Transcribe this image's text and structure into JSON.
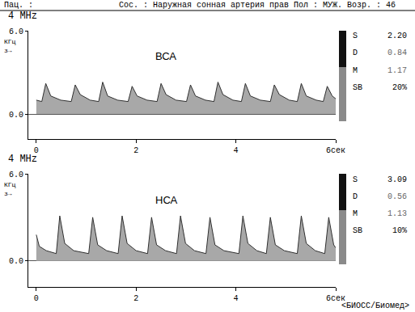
{
  "header": {
    "patient": "Пац. :",
    "info": "Сос. : Наружная сонная артерия прав Пол : МУЖ. Возр. : 46"
  },
  "footer": "<БИОСС/Биомед>",
  "chart_data": [
    {
      "type": "area",
      "title": "ВСА",
      "frequency_label": "4 MHz",
      "y_label": "КГц",
      "y_arrow": "з→",
      "color": "#a8a8a8",
      "x": [
        0.0,
        0.11,
        0.19,
        0.29,
        0.49,
        0.7,
        0.78,
        0.88,
        1.08,
        1.25,
        1.33,
        1.43,
        1.63,
        1.84,
        1.92,
        2.02,
        2.22,
        2.42,
        2.5,
        2.6,
        2.8,
        3.01,
        3.09,
        3.19,
        3.39,
        3.56,
        3.64,
        3.74,
        3.94,
        4.11,
        4.19,
        4.29,
        4.49,
        4.69,
        4.77,
        4.87,
        5.07,
        5.23,
        5.31,
        5.41,
        5.61,
        5.75,
        5.83,
        5.93,
        6.0
      ],
      "values": [
        1.0,
        0.9,
        2.2,
        1.3,
        1.0,
        0.9,
        2.1,
        1.4,
        1.0,
        0.9,
        2.3,
        1.3,
        1.0,
        0.9,
        2.0,
        1.3,
        1.0,
        0.9,
        2.2,
        1.4,
        1.0,
        0.9,
        2.1,
        1.3,
        1.0,
        0.9,
        2.3,
        1.4,
        1.0,
        0.9,
        2.2,
        1.3,
        1.0,
        0.9,
        2.1,
        1.4,
        1.0,
        0.9,
        2.2,
        1.3,
        1.0,
        0.9,
        2.0,
        1.3,
        1.1
      ],
      "xlim": [
        -0.16,
        6
      ],
      "xticks": [
        0,
        2,
        4,
        {
          "value": 6,
          "label": "6сек"
        }
      ],
      "ylim": [
        -1.8,
        6
      ],
      "yticks": [
        {
          "value": 0,
          "label": "0.0"
        },
        {
          "value": 6,
          "label": "6.0"
        }
      ],
      "indices": [
        {
          "name": "S",
          "value": 2.2,
          "label": "2.20"
        },
        {
          "name": "D",
          "value": 0.84,
          "label": "0.84"
        },
        {
          "name": "M",
          "value": 1.17,
          "label": "1.17"
        },
        {
          "name": "SB",
          "value": 20,
          "label": "20%"
        }
      ]
    },
    {
      "type": "area",
      "title": "НСА",
      "frequency_label": "4 MHz",
      "y_label": "КГц",
      "y_arrow": "з→",
      "color": "#a8a8a8",
      "x": [
        0.0,
        0.06,
        0.2,
        0.4,
        0.47,
        0.57,
        0.75,
        1.05,
        1.13,
        1.23,
        1.41,
        1.64,
        1.72,
        1.82,
        2.0,
        2.23,
        2.31,
        2.41,
        2.59,
        2.81,
        2.89,
        2.99,
        3.17,
        3.4,
        3.48,
        3.58,
        3.76,
        4.06,
        4.14,
        4.24,
        4.42,
        4.61,
        4.69,
        4.79,
        4.97,
        5.23,
        5.31,
        5.41,
        5.59,
        5.78,
        5.86,
        5.96,
        6.0
      ],
      "values": [
        1.8,
        1.0,
        0.7,
        0.5,
        3.1,
        1.2,
        0.7,
        0.5,
        3.0,
        1.1,
        0.7,
        0.5,
        3.1,
        1.2,
        0.7,
        0.5,
        3.0,
        1.1,
        0.7,
        0.5,
        3.1,
        1.2,
        0.7,
        0.5,
        3.0,
        1.1,
        0.7,
        0.5,
        3.1,
        1.2,
        0.7,
        0.5,
        3.0,
        1.1,
        0.7,
        0.5,
        3.1,
        1.2,
        0.7,
        0.5,
        3.0,
        1.1,
        0.9
      ],
      "xlim": [
        -0.16,
        6
      ],
      "xticks": [
        0,
        2,
        4,
        {
          "value": 6,
          "label": "6сек"
        }
      ],
      "ylim": [
        -1.8,
        6
      ],
      "yticks": [
        {
          "value": 0,
          "label": "0.0"
        },
        {
          "value": 6,
          "label": "6.0"
        }
      ],
      "indices": [
        {
          "name": "S",
          "value": 3.09,
          "label": "3.09"
        },
        {
          "name": "D",
          "value": 0.56,
          "label": "0.56"
        },
        {
          "name": "M",
          "value": 1.13,
          "label": "1.13"
        },
        {
          "name": "SB",
          "value": 10,
          "label": "10%"
        }
      ]
    }
  ]
}
